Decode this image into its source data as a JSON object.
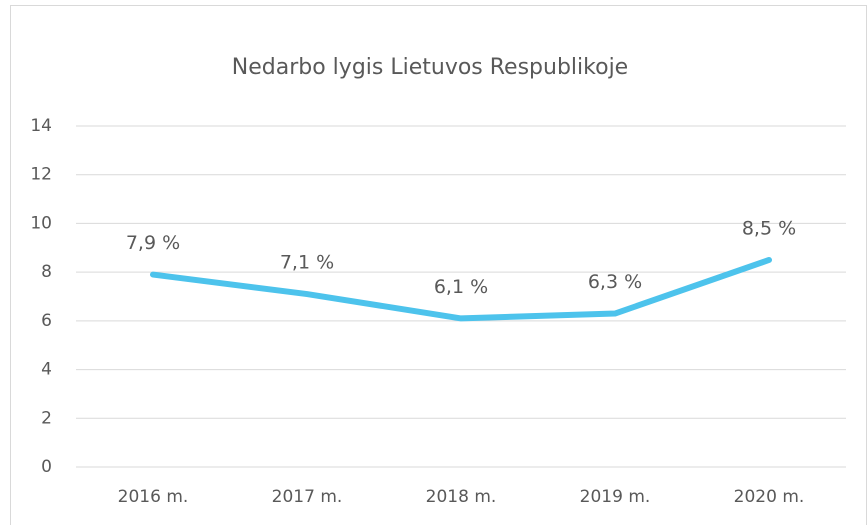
{
  "chart_data": {
    "type": "line",
    "title": "Nedarbo lygis Lietuvos Respublikoje",
    "categories": [
      "2016 m.",
      "2017 m.",
      "2018 m.",
      "2019 m.",
      "2020 m."
    ],
    "series": [
      {
        "name": "Nedarbo lygis",
        "color": "#4dc3ec",
        "values": [
          7.9,
          7.1,
          6.1,
          6.3,
          8.5
        ],
        "value_labels": [
          "7,9 %",
          "7,1 %",
          "6,1 %",
          "6,3 %",
          "8,5 %"
        ]
      }
    ],
    "ylim": [
      0,
      14
    ],
    "yticks": [
      0,
      2,
      4,
      6,
      8,
      10,
      12,
      14
    ],
    "grid": true
  }
}
